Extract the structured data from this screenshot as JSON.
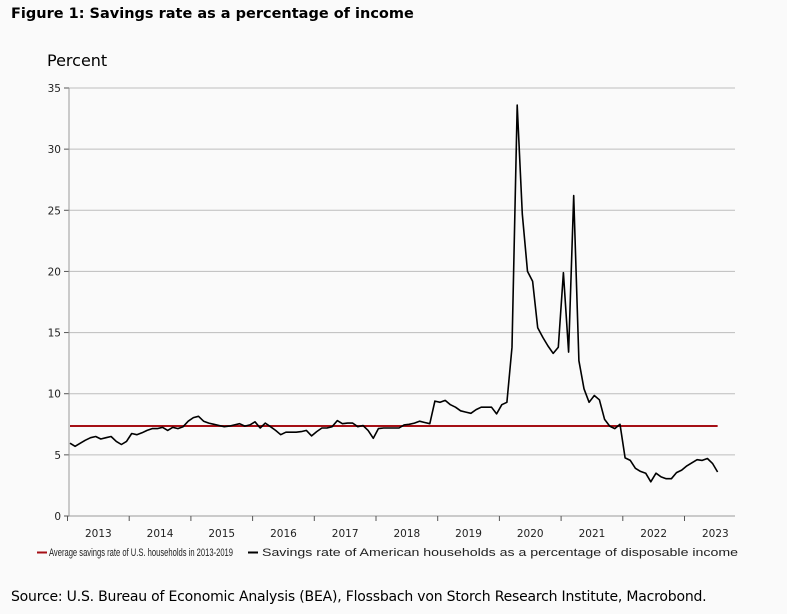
{
  "title": "Figure 1: Savings rate as a percentage of income",
  "source": "Source: U.S. Bureau of Economic Analysis (BEA), Flossbach von Storch Research Institute, Macrobond.",
  "chart_data": {
    "type": "line",
    "title": "Figure 1: Savings rate as a percentage of income",
    "ylabel": "Percent",
    "xlabel": "",
    "ylim": [
      0,
      35
    ],
    "yticks": [
      0,
      5,
      10,
      15,
      20,
      25,
      30,
      35
    ],
    "xticks": [
      "2013",
      "2014",
      "2015",
      "2016",
      "2017",
      "2018",
      "2019",
      "2020",
      "2021",
      "2022",
      "2023"
    ],
    "grid": "horizontal",
    "legend_position": "bottom",
    "frequency": "monthly",
    "x_start": "2013-01",
    "series": [
      {
        "name": "Average savings rate of U.S. households in 2013-2019",
        "color": "#a50f15",
        "type": "constant",
        "value": 7.36
      },
      {
        "name": "Savings rate of American households as a percentage of disposable income",
        "color": "#000000",
        "values": [
          5.95,
          5.7,
          5.95,
          6.2,
          6.4,
          6.5,
          6.3,
          6.4,
          6.5,
          6.1,
          5.85,
          6.1,
          6.75,
          6.65,
          6.8,
          7.0,
          7.15,
          7.15,
          7.25,
          7.0,
          7.25,
          7.15,
          7.3,
          7.75,
          8.05,
          8.15,
          7.75,
          7.6,
          7.5,
          7.4,
          7.3,
          7.35,
          7.45,
          7.55,
          7.35,
          7.45,
          7.7,
          7.2,
          7.6,
          7.3,
          7.0,
          6.65,
          6.85,
          6.85,
          6.85,
          6.9,
          7.0,
          6.55,
          6.9,
          7.2,
          7.2,
          7.3,
          7.8,
          7.55,
          7.6,
          7.6,
          7.3,
          7.4,
          7.0,
          6.35,
          7.15,
          7.2,
          7.2,
          7.2,
          7.2,
          7.45,
          7.5,
          7.6,
          7.75,
          7.65,
          7.55,
          9.4,
          9.3,
          9.45,
          9.1,
          8.9,
          8.6,
          8.5,
          8.4,
          8.7,
          8.9,
          8.9,
          8.9,
          8.35,
          9.1,
          9.3,
          13.8,
          33.6,
          24.7,
          20.0,
          19.2,
          15.4,
          14.6,
          13.9,
          13.3,
          13.8,
          19.9,
          13.4,
          26.2,
          12.7,
          10.4,
          9.3,
          9.85,
          9.5,
          7.9,
          7.35,
          7.15,
          7.5,
          4.75,
          4.55,
          3.9,
          3.65,
          3.5,
          2.8,
          3.5,
          3.2,
          3.05,
          3.05,
          3.55,
          3.75,
          4.1,
          4.35,
          4.6,
          4.55,
          4.7,
          4.3,
          3.6
        ]
      }
    ]
  }
}
